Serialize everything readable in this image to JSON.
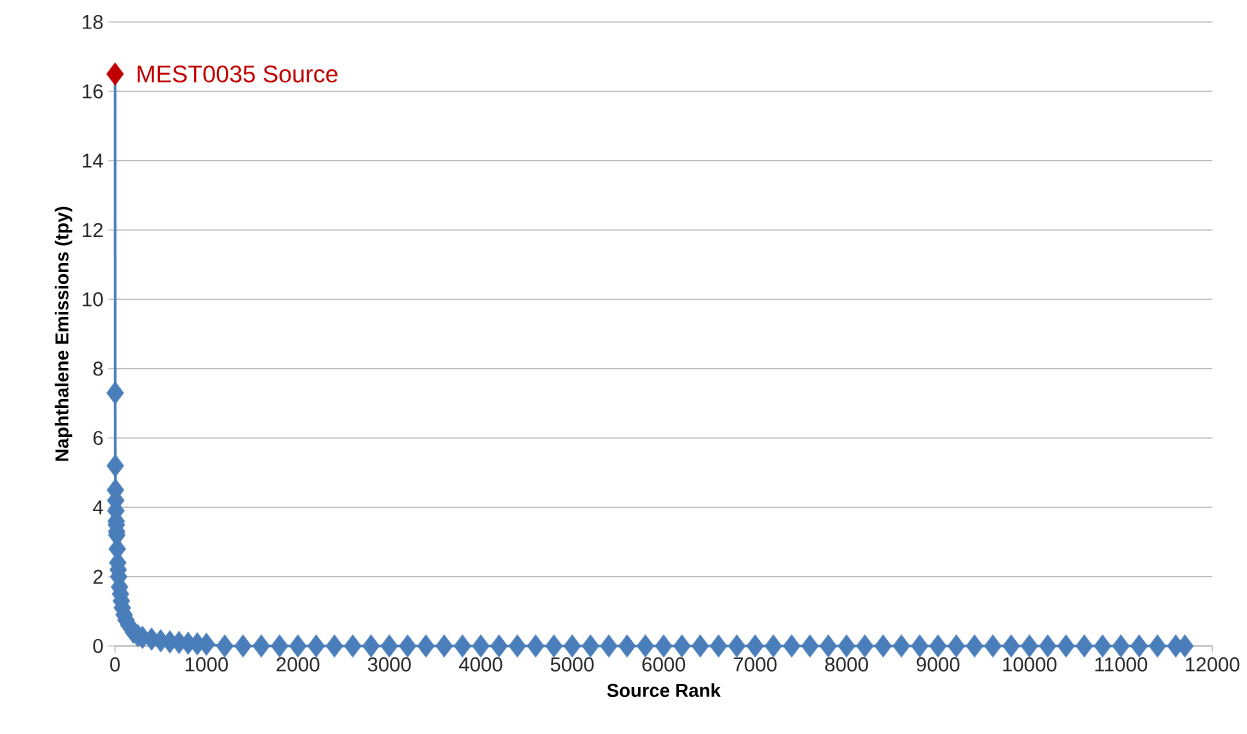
{
  "chart_data": {
    "type": "line",
    "xlabel": "Source Rank",
    "ylabel": "Naphthalene Emissions (tpy)",
    "xlim": [
      0,
      12000
    ],
    "ylim": [
      0,
      18
    ],
    "xticks": [
      0,
      1000,
      2000,
      3000,
      4000,
      5000,
      6000,
      7000,
      8000,
      9000,
      10000,
      11000,
      12000
    ],
    "yticks": [
      0,
      2,
      4,
      6,
      8,
      10,
      12,
      14,
      16,
      18
    ],
    "grid": "y",
    "marker": "diamond",
    "line_style": "solid",
    "annotations": [
      {
        "text": "MEST0035 Source",
        "x": 1,
        "y": 16.5
      }
    ],
    "series": [
      {
        "color": "#4a7ebb",
        "x": [
          1,
          2,
          3,
          5,
          8,
          10,
          13,
          15,
          18,
          20,
          25,
          30,
          35,
          40,
          50,
          60,
          70,
          80,
          100,
          120,
          150,
          200,
          250,
          300,
          400,
          500,
          600,
          700,
          800,
          900,
          1000,
          1200,
          1400,
          1600,
          1800,
          2000,
          2200,
          2400,
          2600,
          2800,
          3000,
          3200,
          3400,
          3600,
          3800,
          4000,
          4200,
          4400,
          4600,
          4800,
          5000,
          5200,
          5400,
          5600,
          5800,
          6000,
          6200,
          6400,
          6600,
          6800,
          7000,
          7200,
          7400,
          7600,
          7800,
          8000,
          8200,
          8400,
          8600,
          8800,
          9000,
          9200,
          9400,
          9600,
          9800,
          10000,
          10200,
          10400,
          10600,
          10800,
          11000,
          11200,
          11400,
          11600,
          11700
        ],
        "values": [
          16.5,
          7.3,
          5.2,
          4.5,
          4.2,
          3.9,
          3.6,
          3.5,
          3.3,
          3.2,
          2.8,
          2.4,
          2.2,
          2.0,
          1.7,
          1.5,
          1.3,
          1.1,
          0.9,
          0.75,
          0.6,
          0.4,
          0.3,
          0.25,
          0.2,
          0.15,
          0.12,
          0.1,
          0.08,
          0.06,
          0.05,
          0,
          0,
          0,
          0,
          0,
          0,
          0,
          0,
          0,
          0,
          0,
          0,
          0,
          0,
          0,
          0,
          0,
          0,
          0,
          0,
          0,
          0,
          0,
          0,
          0,
          0,
          0,
          0,
          0,
          0,
          0,
          0,
          0,
          0,
          0,
          0,
          0,
          0,
          0,
          0,
          0,
          0,
          0,
          0,
          0,
          0,
          0,
          0,
          0,
          0,
          0,
          0,
          0,
          0
        ],
        "colors": [
          "#c00000",
          "#4a7ebb",
          "#4a7ebb",
          "#4a7ebb",
          "#4a7ebb",
          "#4a7ebb",
          "#4a7ebb",
          "#4a7ebb",
          "#4a7ebb",
          "#4a7ebb",
          "#4a7ebb",
          "#4a7ebb",
          "#4a7ebb",
          "#4a7ebb",
          "#4a7ebb",
          "#4a7ebb",
          "#4a7ebb",
          "#4a7ebb",
          "#4a7ebb",
          "#4a7ebb",
          "#4a7ebb",
          "#4a7ebb",
          "#4a7ebb",
          "#4a7ebb",
          "#4a7ebb",
          "#4a7ebb",
          "#4a7ebb",
          "#4a7ebb",
          "#4a7ebb",
          "#4a7ebb",
          "#4a7ebb",
          "#4a7ebb",
          "#4a7ebb",
          "#4a7ebb",
          "#4a7ebb",
          "#4a7ebb",
          "#4a7ebb",
          "#4a7ebb",
          "#4a7ebb",
          "#4a7ebb",
          "#4a7ebb",
          "#4a7ebb",
          "#4a7ebb",
          "#4a7ebb",
          "#4a7ebb",
          "#4a7ebb",
          "#4a7ebb",
          "#4a7ebb",
          "#4a7ebb",
          "#4a7ebb",
          "#4a7ebb",
          "#4a7ebb",
          "#4a7ebb",
          "#4a7ebb",
          "#4a7ebb",
          "#4a7ebb",
          "#4a7ebb",
          "#4a7ebb",
          "#4a7ebb",
          "#4a7ebb",
          "#4a7ebb",
          "#4a7ebb",
          "#4a7ebb",
          "#4a7ebb",
          "#4a7ebb",
          "#4a7ebb",
          "#4a7ebb",
          "#4a7ebb",
          "#4a7ebb",
          "#4a7ebb",
          "#4a7ebb",
          "#4a7ebb",
          "#4a7ebb",
          "#4a7ebb",
          "#4a7ebb",
          "#4a7ebb",
          "#4a7ebb",
          "#4a7ebb",
          "#4a7ebb",
          "#4a7ebb",
          "#4a7ebb",
          "#4a7ebb",
          "#4a7ebb",
          "#4a7ebb",
          "#4a7ebb"
        ]
      }
    ]
  }
}
